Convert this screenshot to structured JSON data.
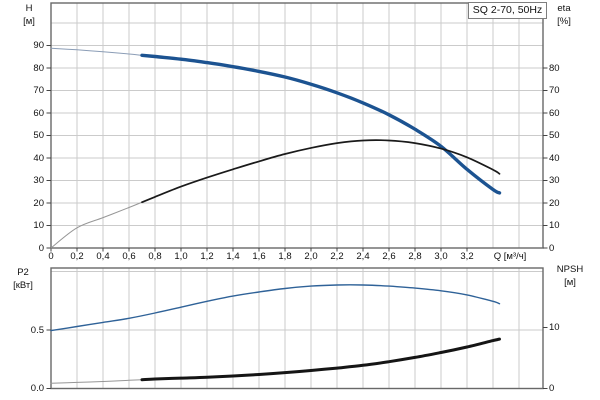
{
  "title_box": {
    "label": "SQ 2-70, 50Hz"
  },
  "colors": {
    "h_curve": "#1c5391",
    "eta_curve": "#1a1a1a",
    "p2_curve": "#2f6298",
    "npsh_curve": "#151515",
    "thin_blue": "#8b9db6",
    "thin_gray": "#969696",
    "grid": "#cbcbcb",
    "frame": "#686868",
    "tick": "#444444",
    "text": "#111111",
    "title_border": "#7e7e7e",
    "background": "#ffffff"
  },
  "chart_data": [
    {
      "type": "line",
      "name": "head-efficiency-chart",
      "title": "SQ 2-70, 50Hz",
      "grid": "on",
      "legend": "none",
      "x_axis": {
        "label": "Q [м³/ч]",
        "xlim": [
          0,
          3.78
        ],
        "tick_values": [
          0,
          0.2,
          0.4,
          0.6,
          0.8,
          1.0,
          1.2,
          1.4,
          1.6,
          1.8,
          2.0,
          2.2,
          2.4,
          2.6,
          2.8,
          3.0,
          3.2
        ],
        "tick_labels": [
          "0",
          "0,2",
          "0,4",
          "0,6",
          "0,8",
          "1,0",
          "1,2",
          "1,4",
          "1,6",
          "1,8",
          "2,0",
          "2,2",
          "2,4",
          "2,6",
          "2,8",
          "3,0",
          "3,2"
        ],
        "grid_values": [
          0.2,
          0.4,
          0.6,
          0.8,
          1.0,
          1.2,
          1.4,
          1.6,
          1.8,
          2.0,
          2.2,
          2.4,
          2.6,
          2.8,
          3.0,
          3.2,
          3.4,
          3.6
        ]
      },
      "left_axis": {
        "name": "H",
        "unit": "[м]",
        "ylim": [
          0,
          108.9
        ],
        "tick_values": [
          0,
          10,
          20,
          30,
          40,
          50,
          60,
          70,
          80,
          90
        ],
        "tick_labels": [
          "0",
          "10",
          "20",
          "30",
          "40",
          "50",
          "60",
          "70",
          "80",
          "90"
        ],
        "grid_values": [
          10,
          20,
          30,
          40,
          50,
          60,
          70,
          80,
          90,
          100
        ]
      },
      "right_axis": {
        "name": "eta",
        "unit": "[%]",
        "ylim": [
          0,
          108.9
        ],
        "tick_values": [
          0,
          10,
          20,
          30,
          40,
          50,
          60,
          70,
          80
        ],
        "tick_labels": [
          "0",
          "10",
          "20",
          "30",
          "40",
          "50",
          "60",
          "70",
          "80"
        ]
      },
      "series": [
        {
          "name": "H",
          "axis": "left",
          "thin_until": 0.7,
          "q": [
            0,
            0.2,
            0.4,
            0.6,
            0.8,
            1.0,
            1.2,
            1.4,
            1.6,
            1.8,
            2.0,
            2.2,
            2.4,
            2.6,
            2.8,
            3.0,
            3.2,
            3.4,
            3.45
          ],
          "v": [
            88.8,
            88.1,
            87.2,
            86.2,
            85.1,
            83.9,
            82.4,
            80.6,
            78.5,
            76.0,
            72.8,
            69.0,
            64.5,
            59.2,
            52.8,
            45.2,
            35.0,
            26.0,
            24.5
          ]
        },
        {
          "name": "eta",
          "axis": "right",
          "thin_until": 0.7,
          "q": [
            0,
            0.2,
            0.4,
            0.6,
            0.8,
            1.0,
            1.2,
            1.4,
            1.6,
            1.8,
            2.0,
            2.2,
            2.4,
            2.6,
            2.8,
            3.0,
            3.2,
            3.4,
            3.45
          ],
          "v": [
            0,
            9.0,
            13.5,
            18.0,
            22.7,
            27.3,
            31.3,
            35.0,
            38.5,
            41.8,
            44.5,
            46.6,
            47.8,
            47.8,
            46.6,
            44.2,
            40.3,
            34.8,
            33.0
          ]
        }
      ]
    },
    {
      "type": "line",
      "name": "power-npsh-chart",
      "grid": "on",
      "legend": "none",
      "left_axis": {
        "name": "P2",
        "unit": "[кВт]",
        "ylim": [
          0,
          1.03
        ],
        "tick_values": [
          0,
          0.5
        ],
        "tick_labels": [
          "0.0",
          "0.5"
        ],
        "grid_values": [
          0.5,
          1.0
        ]
      },
      "right_axis": {
        "name": "NPSH",
        "unit": "[м]",
        "ylim": [
          0,
          19.8
        ],
        "tick_values": [
          0,
          10
        ],
        "tick_labels": [
          "0",
          "10"
        ]
      },
      "series": [
        {
          "name": "P2",
          "axis": "left",
          "thin_until": 0,
          "q": [
            0,
            0.2,
            0.4,
            0.6,
            0.8,
            1.0,
            1.2,
            1.4,
            1.6,
            1.8,
            2.0,
            2.2,
            2.4,
            2.6,
            2.8,
            3.0,
            3.2,
            3.4,
            3.45
          ],
          "v": [
            0.495,
            0.53,
            0.565,
            0.6,
            0.645,
            0.695,
            0.745,
            0.79,
            0.825,
            0.855,
            0.875,
            0.885,
            0.885,
            0.875,
            0.858,
            0.835,
            0.8,
            0.745,
            0.725
          ]
        },
        {
          "name": "NPSH",
          "axis": "right",
          "thin_until": 0.7,
          "q": [
            0,
            0.2,
            0.4,
            0.6,
            0.8,
            1.0,
            1.2,
            1.4,
            1.6,
            1.8,
            2.0,
            2.2,
            2.4,
            2.6,
            2.8,
            3.0,
            3.2,
            3.4,
            3.45
          ],
          "v": [
            0.85,
            1.0,
            1.15,
            1.35,
            1.55,
            1.7,
            1.85,
            2.05,
            2.3,
            2.6,
            2.95,
            3.35,
            3.8,
            4.4,
            5.1,
            5.9,
            6.8,
            7.85,
            8.1
          ]
        }
      ]
    }
  ]
}
